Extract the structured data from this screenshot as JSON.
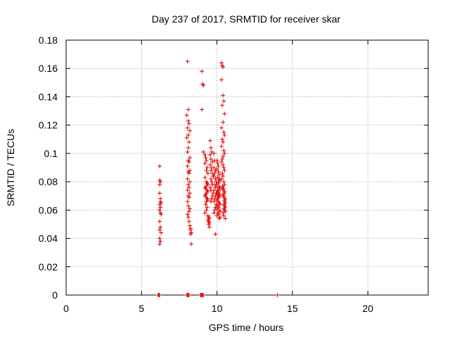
{
  "chart_data": {
    "type": "scatter",
    "title": "Day 237 of 2017, SRMTID for receiver skar",
    "xlabel": "GPS time / hours",
    "ylabel": "SRMTID / TECUs",
    "xlim": [
      0,
      24
    ],
    "ylim": [
      0,
      0.18
    ],
    "xticks": [
      0,
      5,
      10,
      15,
      20
    ],
    "xtick_labels": [
      "0",
      "5",
      "10",
      "15",
      "20"
    ],
    "yticks": [
      0,
      0.02,
      0.04,
      0.06,
      0.08,
      0.1,
      0.12,
      0.14,
      0.16,
      0.18
    ],
    "ytick_labels": [
      "0",
      "0.02",
      "0.04",
      "0.06",
      "0.08",
      "0.1",
      "0.12",
      "0.14",
      "0.16",
      "0.18"
    ],
    "grid": true,
    "marker": "+",
    "color": "#e00000",
    "series": [
      {
        "x": [
          6.2,
          6.2,
          6.25,
          6.2,
          6.25,
          6.3,
          6.2,
          6.25,
          6.3,
          6.2,
          6.25,
          6.2,
          6.3,
          6.2,
          6.25,
          6.2,
          6.25,
          6.2,
          6.25,
          6.2,
          8.05,
          8.1,
          8.0,
          8.1,
          8.15,
          8.05,
          8.2,
          8.1,
          8.0,
          8.15,
          8.1,
          8.05,
          8.2,
          8.1,
          8.15,
          8.05,
          8.2,
          8.1,
          8.15,
          8.05,
          8.2,
          8.1,
          8.15,
          8.05,
          8.2,
          8.1,
          8.15,
          8.05,
          8.1,
          8.2,
          8.15,
          8.05,
          8.1,
          8.15,
          8.2,
          8.25,
          8.3,
          8.25,
          8.3,
          8.25,
          9.0,
          9.05,
          9.1,
          9.0,
          9.1,
          9.2,
          9.25,
          9.3,
          9.2,
          9.35,
          9.3,
          9.4,
          9.2,
          9.3,
          9.35,
          9.4,
          9.3,
          9.2,
          9.25,
          9.35,
          9.4,
          9.3,
          9.25,
          9.2,
          9.3,
          9.35,
          9.4,
          9.3,
          9.25,
          9.35,
          9.3,
          9.2,
          9.4,
          9.45,
          9.5,
          9.4,
          9.45,
          9.5,
          9.45,
          9.5,
          9.55,
          9.6,
          9.65,
          9.55,
          9.6,
          9.7,
          9.55,
          9.65,
          9.6,
          9.7,
          9.75,
          9.6,
          9.65,
          9.7,
          9.55,
          9.6,
          9.75,
          9.7,
          9.65,
          9.6,
          9.8,
          9.85,
          9.8,
          9.9,
          9.85,
          9.8,
          9.9,
          9.95,
          9.85,
          9.9,
          9.8,
          9.95,
          9.9,
          9.85,
          9.8,
          9.95,
          9.9,
          9.85,
          9.8,
          9.9,
          10.0,
          10.05,
          10.1,
          10.0,
          10.1,
          10.15,
          10.05,
          10.2,
          10.1,
          10.0,
          10.15,
          10.2,
          10.05,
          10.1,
          10.0,
          10.15,
          10.2,
          10.1,
          10.05,
          10.0,
          10.1,
          10.15,
          10.2,
          10.05,
          10.1,
          10.0,
          10.15,
          10.2,
          10.05,
          10.1,
          10.0,
          10.2,
          10.15,
          10.1,
          10.05,
          10.2,
          10.0,
          10.1,
          10.15,
          10.05,
          10.3,
          10.35,
          10.4,
          10.3,
          10.4,
          10.45,
          10.35,
          10.5,
          10.4,
          10.3,
          10.45,
          10.5,
          10.35,
          10.4,
          10.3,
          10.45,
          10.5,
          10.4,
          10.35,
          10.3,
          10.4,
          10.45,
          10.5,
          10.35,
          10.4,
          10.3,
          10.45,
          10.5,
          10.35,
          10.4,
          10.5,
          10.45,
          10.55,
          10.5,
          10.45,
          10.55,
          10.5,
          10.4,
          10.45,
          10.55,
          10.4,
          10.45,
          10.5,
          10.4,
          10.45,
          10.5,
          10.55,
          10.5,
          10.45,
          10.55,
          6.1,
          6.15,
          6.2,
          8.0,
          8.05,
          8.1,
          8.15,
          8.9,
          8.95,
          9.0,
          9.05,
          9.1,
          14.0
        ],
        "y": [
          0.091,
          0.081,
          0.08,
          0.072,
          0.066,
          0.065,
          0.064,
          0.058,
          0.057,
          0.052,
          0.048,
          0.046,
          0.044,
          0.04,
          0.038,
          0.036,
          0.062,
          0.06,
          0.068,
          0.078,
          0.165,
          0.131,
          0.127,
          0.123,
          0.121,
          0.118,
          0.116,
          0.113,
          0.111,
          0.108,
          0.104,
          0.101,
          0.097,
          0.095,
          0.094,
          0.091,
          0.088,
          0.087,
          0.086,
          0.082,
          0.08,
          0.078,
          0.076,
          0.074,
          0.072,
          0.07,
          0.069,
          0.066,
          0.063,
          0.061,
          0.059,
          0.057,
          0.055,
          0.052,
          0.049,
          0.046,
          0.044,
          0.043,
          0.036,
          0.047,
          0.158,
          0.149,
          0.148,
          0.131,
          0.101,
          0.099,
          0.097,
          0.095,
          0.093,
          0.09,
          0.088,
          0.086,
          0.083,
          0.08,
          0.079,
          0.078,
          0.077,
          0.076,
          0.075,
          0.074,
          0.073,
          0.072,
          0.071,
          0.07,
          0.069,
          0.068,
          0.067,
          0.066,
          0.064,
          0.062,
          0.06,
          0.058,
          0.056,
          0.055,
          0.054,
          0.053,
          0.052,
          0.051,
          0.05,
          0.048,
          0.109,
          0.104,
          0.101,
          0.099,
          0.096,
          0.094,
          0.092,
          0.09,
          0.088,
          0.086,
          0.084,
          0.082,
          0.08,
          0.078,
          0.076,
          0.074,
          0.072,
          0.07,
          0.068,
          0.066,
          0.1,
          0.095,
          0.09,
          0.088,
          0.086,
          0.084,
          0.082,
          0.08,
          0.078,
          0.076,
          0.074,
          0.072,
          0.07,
          0.068,
          0.066,
          0.064,
          0.062,
          0.06,
          0.058,
          0.043,
          0.095,
          0.093,
          0.091,
          0.089,
          0.087,
          0.085,
          0.083,
          0.081,
          0.079,
          0.077,
          0.076,
          0.075,
          0.074,
          0.073,
          0.072,
          0.071,
          0.07,
          0.069,
          0.068,
          0.067,
          0.066,
          0.065,
          0.064,
          0.063,
          0.062,
          0.061,
          0.06,
          0.059,
          0.058,
          0.057,
          0.056,
          0.055,
          0.054,
          0.072,
          0.074,
          0.076,
          0.078,
          0.08,
          0.082,
          0.07,
          0.164,
          0.162,
          0.161,
          0.152,
          0.141,
          0.137,
          0.134,
          0.128,
          0.122,
          0.118,
          0.115,
          0.113,
          0.11,
          0.108,
          0.105,
          0.102,
          0.1,
          0.098,
          0.096,
          0.094,
          0.092,
          0.09,
          0.088,
          0.086,
          0.084,
          0.082,
          0.08,
          0.078,
          0.076,
          0.074,
          0.072,
          0.07,
          0.068,
          0.066,
          0.064,
          0.062,
          0.06,
          0.058,
          0.056,
          0.054,
          0.077,
          0.075,
          0.073,
          0.071,
          0.069,
          0.067,
          0.065,
          0.063,
          0.061,
          0.059,
          0,
          0,
          0,
          0,
          0,
          0,
          0,
          0,
          0,
          0,
          0,
          0,
          0
        ]
      }
    ]
  }
}
